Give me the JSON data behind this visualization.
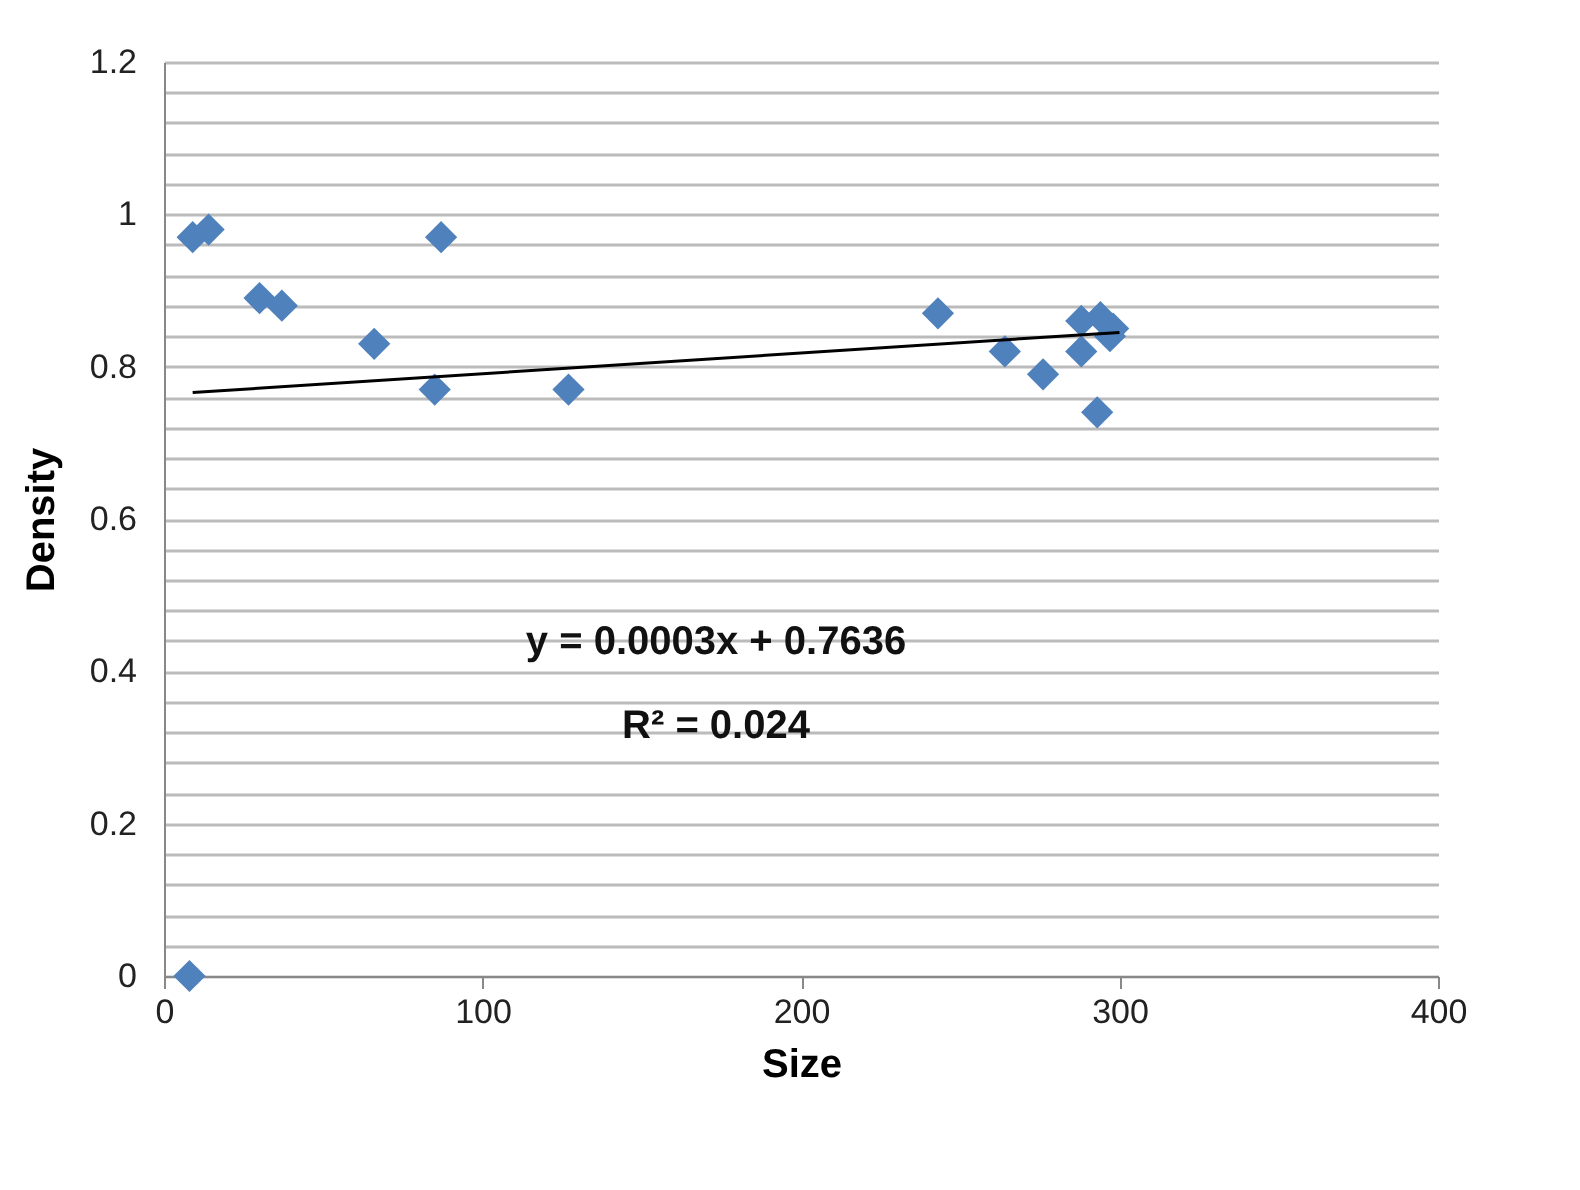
{
  "chart_data": {
    "type": "scatter",
    "xlabel": "Size",
    "ylabel": "Density",
    "xlim": [
      0,
      400
    ],
    "xticks": [
      0,
      100,
      200,
      300,
      400
    ],
    "ylim": [
      0,
      1.2
    ],
    "yticks": [
      0,
      0.2,
      0.4,
      0.6,
      0.8,
      1,
      1.2
    ],
    "grid": "y",
    "marker": "diamond",
    "annotations": [
      "y = 0.0003x + 0.7636",
      "R² = 0.024"
    ],
    "series": [
      {
        "color": "#4f81bd",
        "x": [
          9,
          14,
          30,
          37,
          66,
          87,
          85,
          127,
          243,
          264,
          276,
          288,
          288,
          294,
          297,
          298,
          293,
          8
        ],
        "values": [
          0.97,
          0.98,
          0.89,
          0.88,
          0.83,
          0.97,
          0.77,
          0.77,
          0.87,
          0.82,
          0.79,
          0.86,
          0.82,
          0.865,
          0.84,
          0.85,
          0.74,
          0
        ]
      },
      {
        "type": "line",
        "marker": "none",
        "color": "#000000",
        "x": [
          9,
          300
        ],
        "values": [
          0.766,
          0.845
        ]
      }
    ]
  }
}
